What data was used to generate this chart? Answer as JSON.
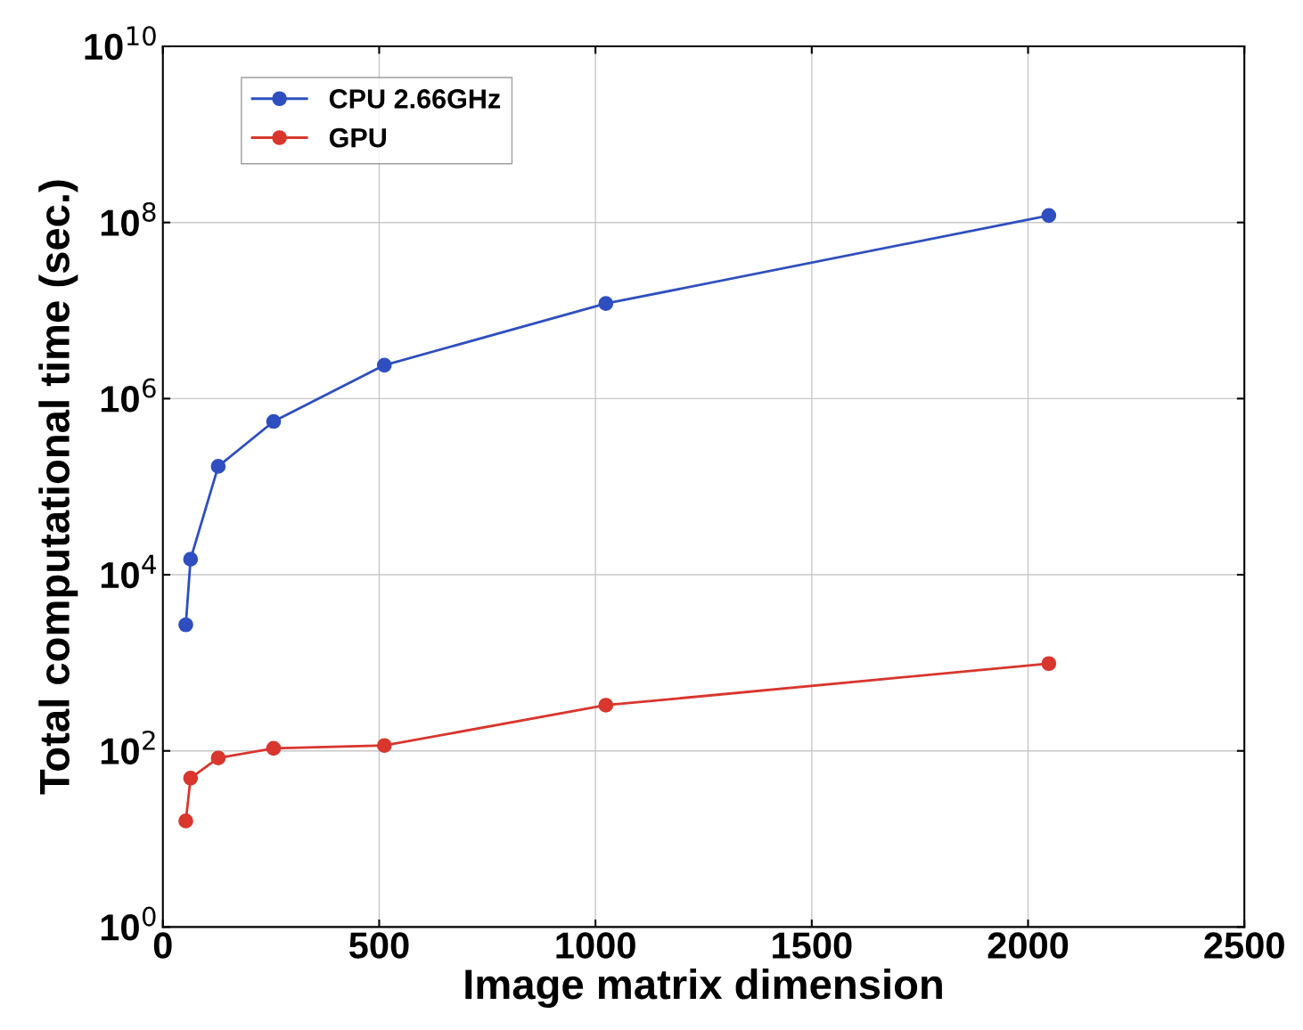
{
  "chart_data": {
    "type": "line",
    "xlabel": "Image matrix dimension",
    "ylabel": "Total computational time (sec.)",
    "log": "y",
    "grid": true,
    "legend": "top left",
    "marker": "circle",
    "line_style": "solid",
    "xlim": [
      0,
      2500
    ],
    "xticks": [
      0,
      500,
      1000,
      1500,
      2000,
      2500
    ],
    "ylim": [
      1,
      10000000000
    ],
    "yticks": [
      {
        "value": 1,
        "label": "10$^{0}$"
      },
      {
        "value": 100,
        "label": "10$^{2}$"
      },
      {
        "value": 10000,
        "label": "10$^{4}$"
      },
      {
        "value": 1000000,
        "label": "10$^{6}$"
      },
      {
        "value": 100000000,
        "label": "10$^{8}$"
      },
      {
        "value": 10000000000,
        "label": "10$^{10}$"
      }
    ],
    "series": [
      {
        "name": "CPU 2.66GHz",
        "color": "#2f4fc0",
        "x": [
          53,
          64,
          128,
          256,
          512,
          1024,
          2048
        ],
        "values": [
          2700,
          15000,
          170000,
          550000,
          2400000,
          12000000,
          120000000
        ]
      },
      {
        "name": "GPU",
        "color": "#d9362e",
        "x": [
          53,
          64,
          128,
          256,
          512,
          1024,
          2048
        ],
        "values": [
          16,
          49,
          83,
          107,
          115,
          330,
          980
        ]
      }
    ]
  }
}
